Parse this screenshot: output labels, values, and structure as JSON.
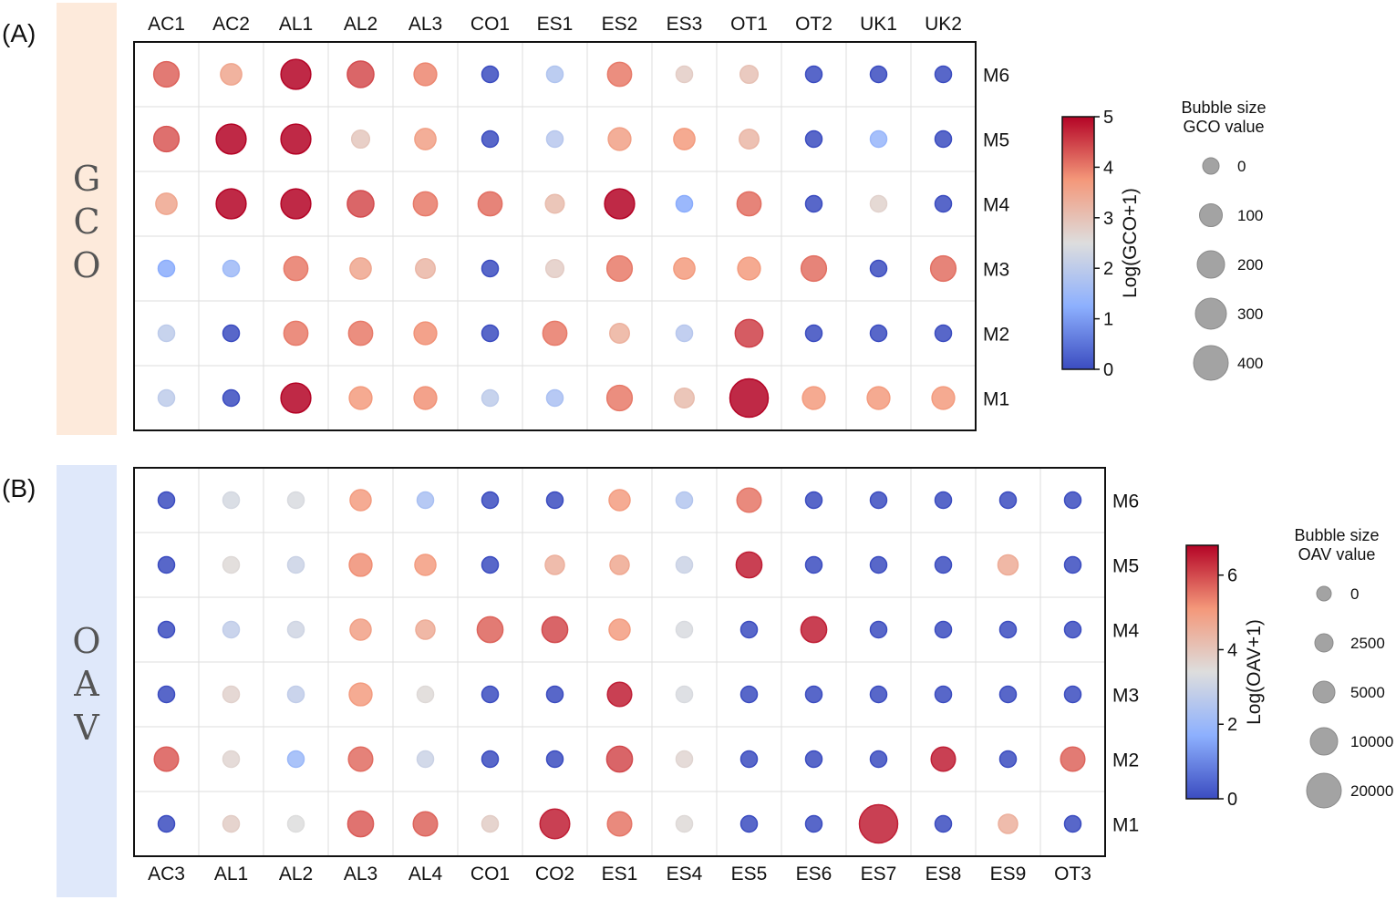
{
  "chart_data": [
    {
      "type": "scatter",
      "panel_label": "(A)",
      "side_label": [
        "G",
        "C",
        "O"
      ],
      "side_color": "#fdeadb",
      "rows": [
        "M6",
        "M5",
        "M4",
        "M3",
        "M2",
        "M1"
      ],
      "columns": [
        "AC1",
        "AC2",
        "AL1",
        "AL2",
        "AL3",
        "CO1",
        "ES1",
        "ES2",
        "ES3",
        "OT1",
        "OT2",
        "UK1",
        "UK2"
      ],
      "x_axis_position": "top",
      "y_axis_position": "right",
      "grid": true,
      "color_values": [
        [
          4.2,
          3.5,
          5.0,
          4.4,
          3.9,
          0,
          1.8,
          4.0,
          2.8,
          3.0,
          0,
          0,
          0
        ],
        [
          4.3,
          5.0,
          5.0,
          2.9,
          3.6,
          0,
          1.9,
          3.6,
          3.7,
          3.2,
          0,
          1.4,
          0
        ],
        [
          3.5,
          5.0,
          5.0,
          4.4,
          4.0,
          4.1,
          3.1,
          5.0,
          1.2,
          4.1,
          0,
          2.7,
          0
        ],
        [
          1.2,
          1.5,
          4.0,
          3.5,
          3.2,
          0,
          2.8,
          4.0,
          3.7,
          3.7,
          4.1,
          0,
          4.1
        ],
        [
          2.0,
          0,
          4.0,
          4.0,
          3.8,
          0,
          4.0,
          3.3,
          1.9,
          4.5,
          0,
          0,
          0
        ],
        [
          2.0,
          0,
          5.0,
          3.7,
          3.8,
          2.0,
          1.7,
          4.0,
          3.1,
          5.0,
          3.7,
          3.7,
          3.7
        ]
      ],
      "size_values": [
        [
          100,
          70,
          140,
          110,
          80,
          0,
          40,
          90,
          40,
          50,
          0,
          0,
          0
        ],
        [
          100,
          140,
          140,
          50,
          70,
          0,
          40,
          80,
          70,
          60,
          0,
          10,
          0
        ],
        [
          70,
          140,
          140,
          110,
          90,
          90,
          55,
          140,
          10,
          90,
          0,
          40,
          0
        ],
        [
          10,
          15,
          90,
          70,
          60,
          0,
          50,
          100,
          70,
          80,
          100,
          0,
          100
        ],
        [
          30,
          0,
          90,
          90,
          80,
          0,
          90,
          60,
          30,
          120,
          0,
          0,
          0
        ],
        [
          30,
          0,
          140,
          80,
          80,
          30,
          30,
          100,
          60,
          230,
          80,
          80,
          80
        ]
      ],
      "colorbar": {
        "label": "Log(GCO+1)",
        "ticks": [
          0,
          1,
          2,
          3,
          4,
          5
        ],
        "range": [
          0,
          5
        ]
      },
      "size_legend": {
        "title_line1": "Bubble size",
        "title_line2": "GCO value",
        "entries": [
          "0",
          "100",
          "200",
          "300",
          "400"
        ],
        "entry_values": [
          0,
          100,
          200,
          300,
          400
        ]
      }
    },
    {
      "type": "scatter",
      "panel_label": "(B)",
      "side_label": [
        "O",
        "A",
        "V"
      ],
      "side_color": "#dfe8fa",
      "rows": [
        "M6",
        "M5",
        "M4",
        "M3",
        "M2",
        "M1"
      ],
      "columns": [
        "AC3",
        "AL1",
        "AL2",
        "AL3",
        "AL4",
        "CO1",
        "CO2",
        "ES1",
        "ES4",
        "ES5",
        "ES6",
        "ES7",
        "ES8",
        "ES9",
        "OT3"
      ],
      "x_axis_position": "bottom",
      "y_axis_position": "right",
      "grid": true,
      "color_values": [
        [
          0,
          3.2,
          3.3,
          5.0,
          2.3,
          0,
          0,
          5.0,
          2.5,
          5.5,
          0,
          0,
          0,
          0,
          0
        ],
        [
          0,
          3.5,
          3.0,
          5.2,
          5.0,
          0,
          4.5,
          4.7,
          3.0,
          6.5,
          0,
          0,
          0,
          4.6,
          0
        ],
        [
          0,
          2.8,
          3.1,
          4.9,
          4.6,
          5.7,
          6.0,
          5.0,
          3.3,
          0,
          6.5,
          0,
          0,
          0,
          0
        ],
        [
          0,
          3.7,
          2.8,
          5.0,
          3.5,
          0,
          0,
          6.5,
          3.3,
          0,
          0,
          0,
          0,
          0,
          0
        ],
        [
          5.8,
          3.6,
          2.0,
          5.6,
          3.0,
          0,
          0,
          6.0,
          3.6,
          0,
          0,
          0,
          6.5,
          0,
          5.7
        ],
        [
          0,
          3.8,
          3.4,
          5.8,
          5.7,
          3.8,
          6.5,
          5.5,
          3.5,
          0,
          0,
          6.5,
          0,
          4.5,
          0
        ]
      ],
      "size_values": [
        [
          0,
          1000,
          1200,
          6000,
          600,
          0,
          0,
          6000,
          700,
          8000,
          0,
          0,
          0,
          0,
          0
        ],
        [
          0,
          1500,
          1000,
          7000,
          6000,
          0,
          5000,
          5000,
          1000,
          9000,
          0,
          0,
          0,
          5500,
          0
        ],
        [
          0,
          1000,
          1200,
          6000,
          5000,
          9000,
          9000,
          6000,
          1200,
          0,
          9000,
          0,
          0,
          0,
          0
        ],
        [
          0,
          2000,
          1000,
          7000,
          2500,
          0,
          0,
          8000,
          1500,
          0,
          0,
          0,
          0,
          0,
          0
        ],
        [
          8000,
          2500,
          600,
          8000,
          1200,
          0,
          0,
          9000,
          2500,
          0,
          0,
          0,
          8000,
          0,
          8000
        ],
        [
          0,
          2500,
          2000,
          9000,
          8000,
          2500,
          12000,
          8000,
          2000,
          0,
          0,
          20000,
          0,
          5000,
          0
        ]
      ],
      "colorbar": {
        "label": "Log(OAV+1)",
        "ticks": [
          0,
          2,
          4,
          6
        ],
        "range": [
          0,
          6.8
        ]
      },
      "size_legend": {
        "title_line1": "Bubble size",
        "title_line2": "OAV value",
        "entries": [
          "0",
          "2500",
          "5000",
          "10000",
          "20000"
        ],
        "entry_values": [
          0,
          2500,
          5000,
          10000,
          20000
        ]
      }
    }
  ]
}
